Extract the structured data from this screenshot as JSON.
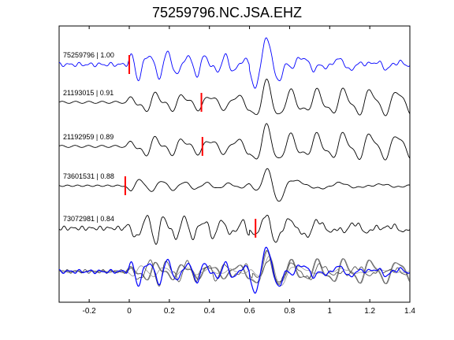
{
  "chart_data": {
    "type": "line",
    "title": "75259796.NC.JSA.EHZ",
    "xlabel": "",
    "ylabel": "",
    "xlim": [
      -0.35,
      1.4
    ],
    "xticks": [
      -0.2,
      0,
      0.2,
      0.4,
      0.6,
      0.8,
      1,
      1.2,
      1.4
    ],
    "xtick_labels": [
      "-0.2",
      "0",
      "0.2",
      "0.4",
      "0.6",
      "0.8",
      "1",
      "1.2",
      "1.4"
    ],
    "grid": false,
    "traces": [
      {
        "id": "75259796",
        "corr": "1.00",
        "label": "75259796 | 1.00",
        "color": "#0000ff",
        "pick_time": 0.0
      },
      {
        "id": "21193015",
        "corr": "0.91",
        "label": "21193015 | 0.91",
        "color": "#000000",
        "pick_time": 0.36
      },
      {
        "id": "21192959",
        "corr": "0.89",
        "label": "21192959 | 0.89",
        "color": "#000000",
        "pick_time": 0.365
      },
      {
        "id": "73601531",
        "corr": "0.88",
        "label": "73601531 | 0.88",
        "color": "#000000",
        "pick_time": -0.02
      },
      {
        "id": "73072981",
        "corr": "0.84",
        "label": "73072981 | 0.84",
        "color": "#000000",
        "pick_time": 0.63
      }
    ],
    "stack": {
      "overlay_colors": [
        "#555555",
        "#777777",
        "#999999",
        "#444444"
      ],
      "reference_color": "#0000ff"
    },
    "pick_color": "#ff0000"
  }
}
